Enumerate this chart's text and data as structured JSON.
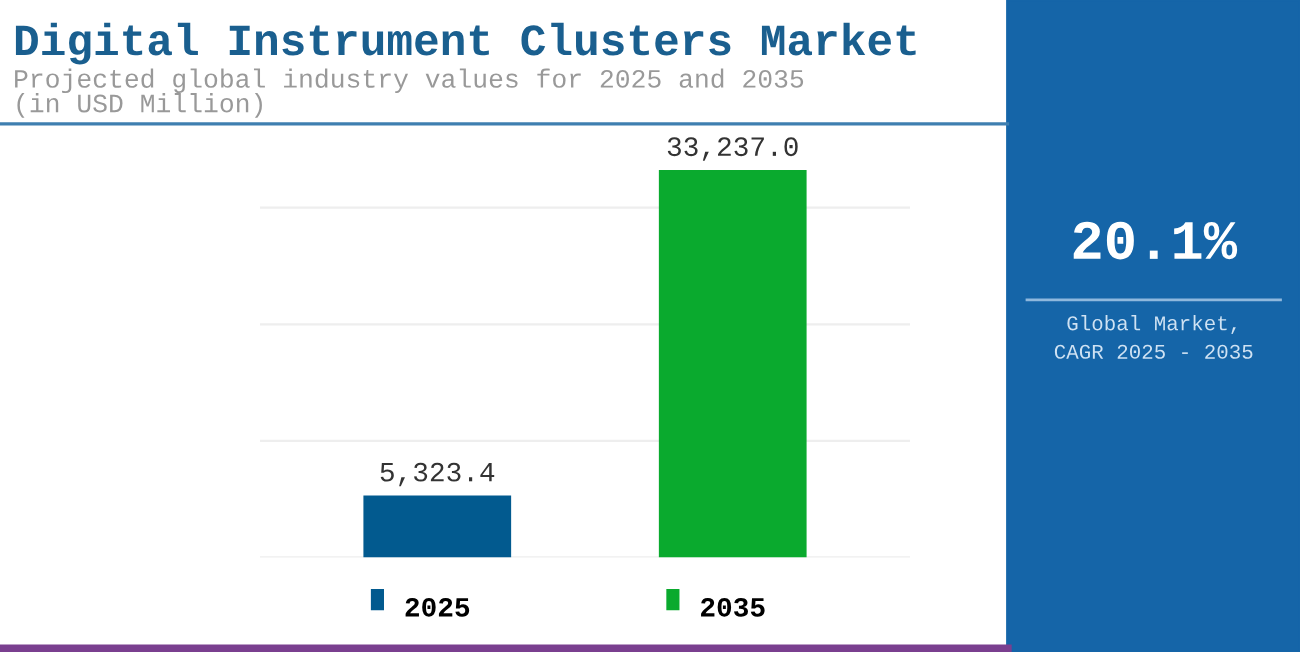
{
  "chart_data": {
    "type": "bar",
    "title": "Digital Instrument Clusters Market",
    "subtitle": "Projected global industry values for 2025 and 2035\n(in USD Million)",
    "categories": [
      "2025",
      "2035"
    ],
    "values": [
      5323.4,
      33237.0
    ],
    "colors": [
      "#025a8f",
      "#0aaa2e"
    ],
    "value_labels": [
      "5,323.4",
      "33,237.0"
    ],
    "tick_labels": "x",
    "grid": "y",
    "annotations": [
      "20.1%",
      "Global Market,\nCAGR 2025 - 2035"
    ]
  }
}
